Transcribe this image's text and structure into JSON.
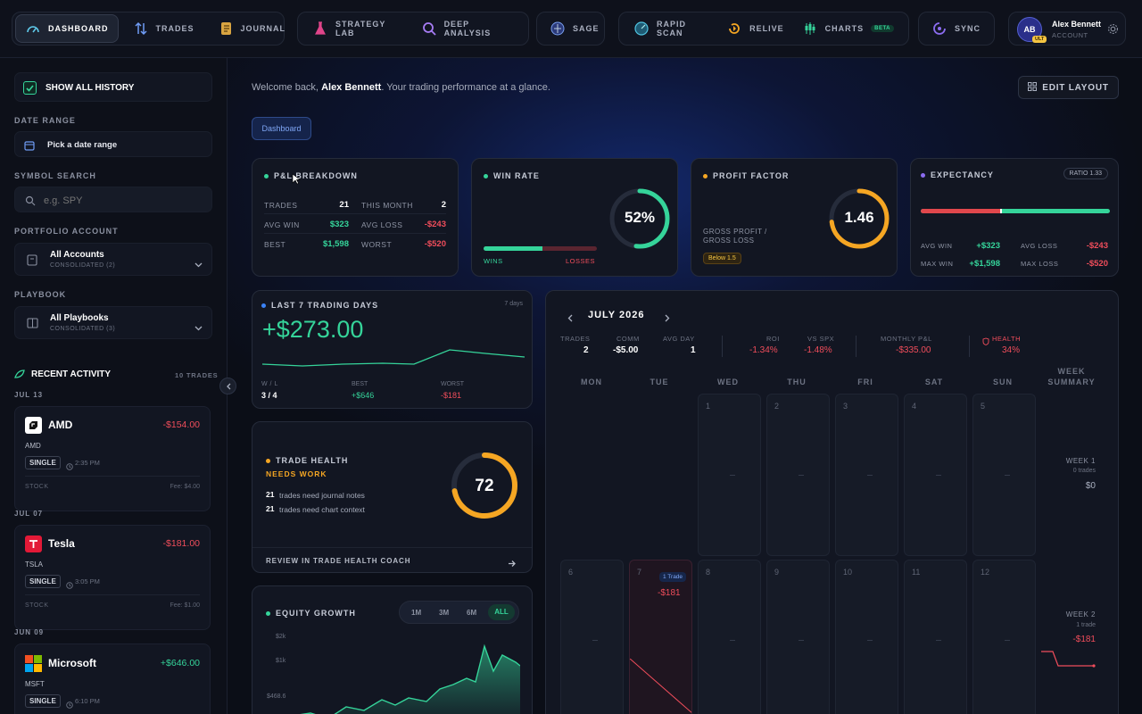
{
  "nav": {
    "dashboard": "DASHBOARD",
    "trades": "TRADES",
    "journal": "JOURNAL",
    "strategy_lab": "STRATEGY LAB",
    "deep_analysis": "DEEP ANALYSIS",
    "sage": "SAGE",
    "rapid_scan": "RAPID SCAN",
    "relive": "RELIVE",
    "charts": "CHARTS",
    "charts_badge": "BETA",
    "sync": "SYNC"
  },
  "user": {
    "initials": "AB",
    "name": "Alex Bennett",
    "role": "ACCOUNT",
    "badge": "ULT"
  },
  "sidebar": {
    "show_all_history": "SHOW ALL HISTORY",
    "date_range_label": "DATE RANGE",
    "date_range_value": "Pick a date range",
    "symbol_search_label": "SYMBOL SEARCH",
    "symbol_search_placeholder": "e.g. SPY",
    "portfolio_label": "PORTFOLIO ACCOUNT",
    "portfolio_value": "All Accounts",
    "portfolio_sub": "CONSOLIDATED (2)",
    "playbook_label": "PLAYBOOK",
    "playbook_value": "All Playbooks",
    "playbook_sub": "CONSOLIDATED (3)",
    "recent_activity": "RECENT ACTIVITY",
    "recent_count": "10 TRADES",
    "activity": [
      {
        "date": "JUL 13",
        "name": "AMD",
        "ticker": "AMD",
        "pnl": "-$154.00",
        "type": "SINGLE",
        "time": "2:35 PM",
        "asset": "STOCK",
        "fee": "Fee: $4.00"
      },
      {
        "date": "JUL 07",
        "name": "Tesla",
        "ticker": "TSLA",
        "pnl": "-$181.00",
        "type": "SINGLE",
        "time": "3:05 PM",
        "asset": "STOCK",
        "fee": "Fee: $1.00"
      },
      {
        "date": "JUN 09",
        "name": "Microsoft",
        "ticker": "MSFT",
        "pnl": "+$646.00",
        "type": "SINGLE",
        "time": "6:10 PM"
      }
    ]
  },
  "header": {
    "welcome_prefix": "Welcome back, ",
    "user_name": "Alex Bennett",
    "welcome_suffix": ". Your trading performance at a glance.",
    "edit_layout": "EDIT LAYOUT",
    "tab": "Dashboard"
  },
  "pnl": {
    "title": "P&L BREAKDOWN",
    "rows": [
      {
        "l1": "TRADES",
        "v1": "21",
        "l2": "THIS MONTH",
        "v2": "2"
      },
      {
        "l1": "AVG WIN",
        "v1": "$323",
        "l2": "AVG LOSS",
        "v2": "-$243"
      },
      {
        "l1": "BEST",
        "v1": "$1,598",
        "l2": "WORST",
        "v2": "-$520"
      }
    ]
  },
  "winrate": {
    "title": "WIN RATE",
    "value": "52%",
    "pct": 0.52,
    "wins": "WINS",
    "losses": "LOSSES"
  },
  "profit_factor": {
    "title": "PROFIT FACTOR",
    "value": "1.46",
    "fill": 0.73,
    "desc1": "GROSS PROFIT /",
    "desc2": "GROSS LOSS",
    "badge": "Below 1.5"
  },
  "expectancy": {
    "title": "EXPECTANCY",
    "ratio": "RATIO 1.33",
    "loss_share": 0.43,
    "avg_win_l": "AVG WIN",
    "avg_win": "+$323",
    "avg_loss_l": "AVG LOSS",
    "avg_loss": "-$243",
    "max_win_l": "MAX WIN",
    "max_win": "+$1,598",
    "max_loss_l": "MAX LOSS",
    "max_loss": "-$520"
  },
  "last7": {
    "title": "LAST 7 TRADING DAYS",
    "range": "7 days",
    "value": "+$273.00",
    "wl_label": "W / L",
    "wl": "3 / 4",
    "best_label": "BEST",
    "best": "+$646",
    "worst_label": "WORST",
    "worst": "-$181"
  },
  "health": {
    "title": "TRADE HEALTH",
    "status": "NEEDS WORK",
    "score": "72",
    "score_num": 72,
    "n1": "21",
    "t1": "trades need journal notes",
    "n2": "21",
    "t2": "trades need chart context",
    "cta": "REVIEW IN TRADE HEALTH COACH"
  },
  "equity": {
    "title": "EQUITY GROWTH",
    "ranges": [
      "1M",
      "3M",
      "6M",
      "ALL"
    ],
    "active": "ALL",
    "ticks": [
      "$2k",
      "$1k",
      "$468.6"
    ]
  },
  "calendar": {
    "month": "JULY 2026",
    "stats": [
      {
        "label": "TRADES",
        "value": "2"
      },
      {
        "label": "COMM",
        "value": "-$5.00"
      },
      {
        "label": "AVG DAY",
        "value": "1"
      },
      {
        "label": "ROI",
        "value": "-1.34%"
      },
      {
        "label": "VS SPX",
        "value": "-1.48%"
      },
      {
        "label": "MONTHLY P&L",
        "value": "-$335.00"
      },
      {
        "label": "HEALTH",
        "value": "34%"
      }
    ],
    "weekdays": [
      "MON",
      "TUE",
      "WED",
      "THU",
      "FRI",
      "SAT",
      "SUN"
    ],
    "week_summary": [
      "WEEK",
      "SUMMARY"
    ],
    "week1": {
      "label": "WEEK 1",
      "trades": "0 trades",
      "pnl": "$0"
    },
    "week2": {
      "label": "WEEK 2",
      "trades": "1 trade",
      "pnl": "-$181"
    },
    "row1": [
      "1",
      "2",
      "3",
      "4",
      "5"
    ],
    "row2": [
      "6",
      "7",
      "8",
      "9",
      "10",
      "11",
      "12"
    ],
    "day7_badge": "1 Trade",
    "day7_pnl": "-$181"
  },
  "colors": {
    "green": "#35d49a",
    "red": "#f04d5b",
    "amber": "#f5a623",
    "purple": "#8b6cf0",
    "blue": "#3b82f6"
  }
}
